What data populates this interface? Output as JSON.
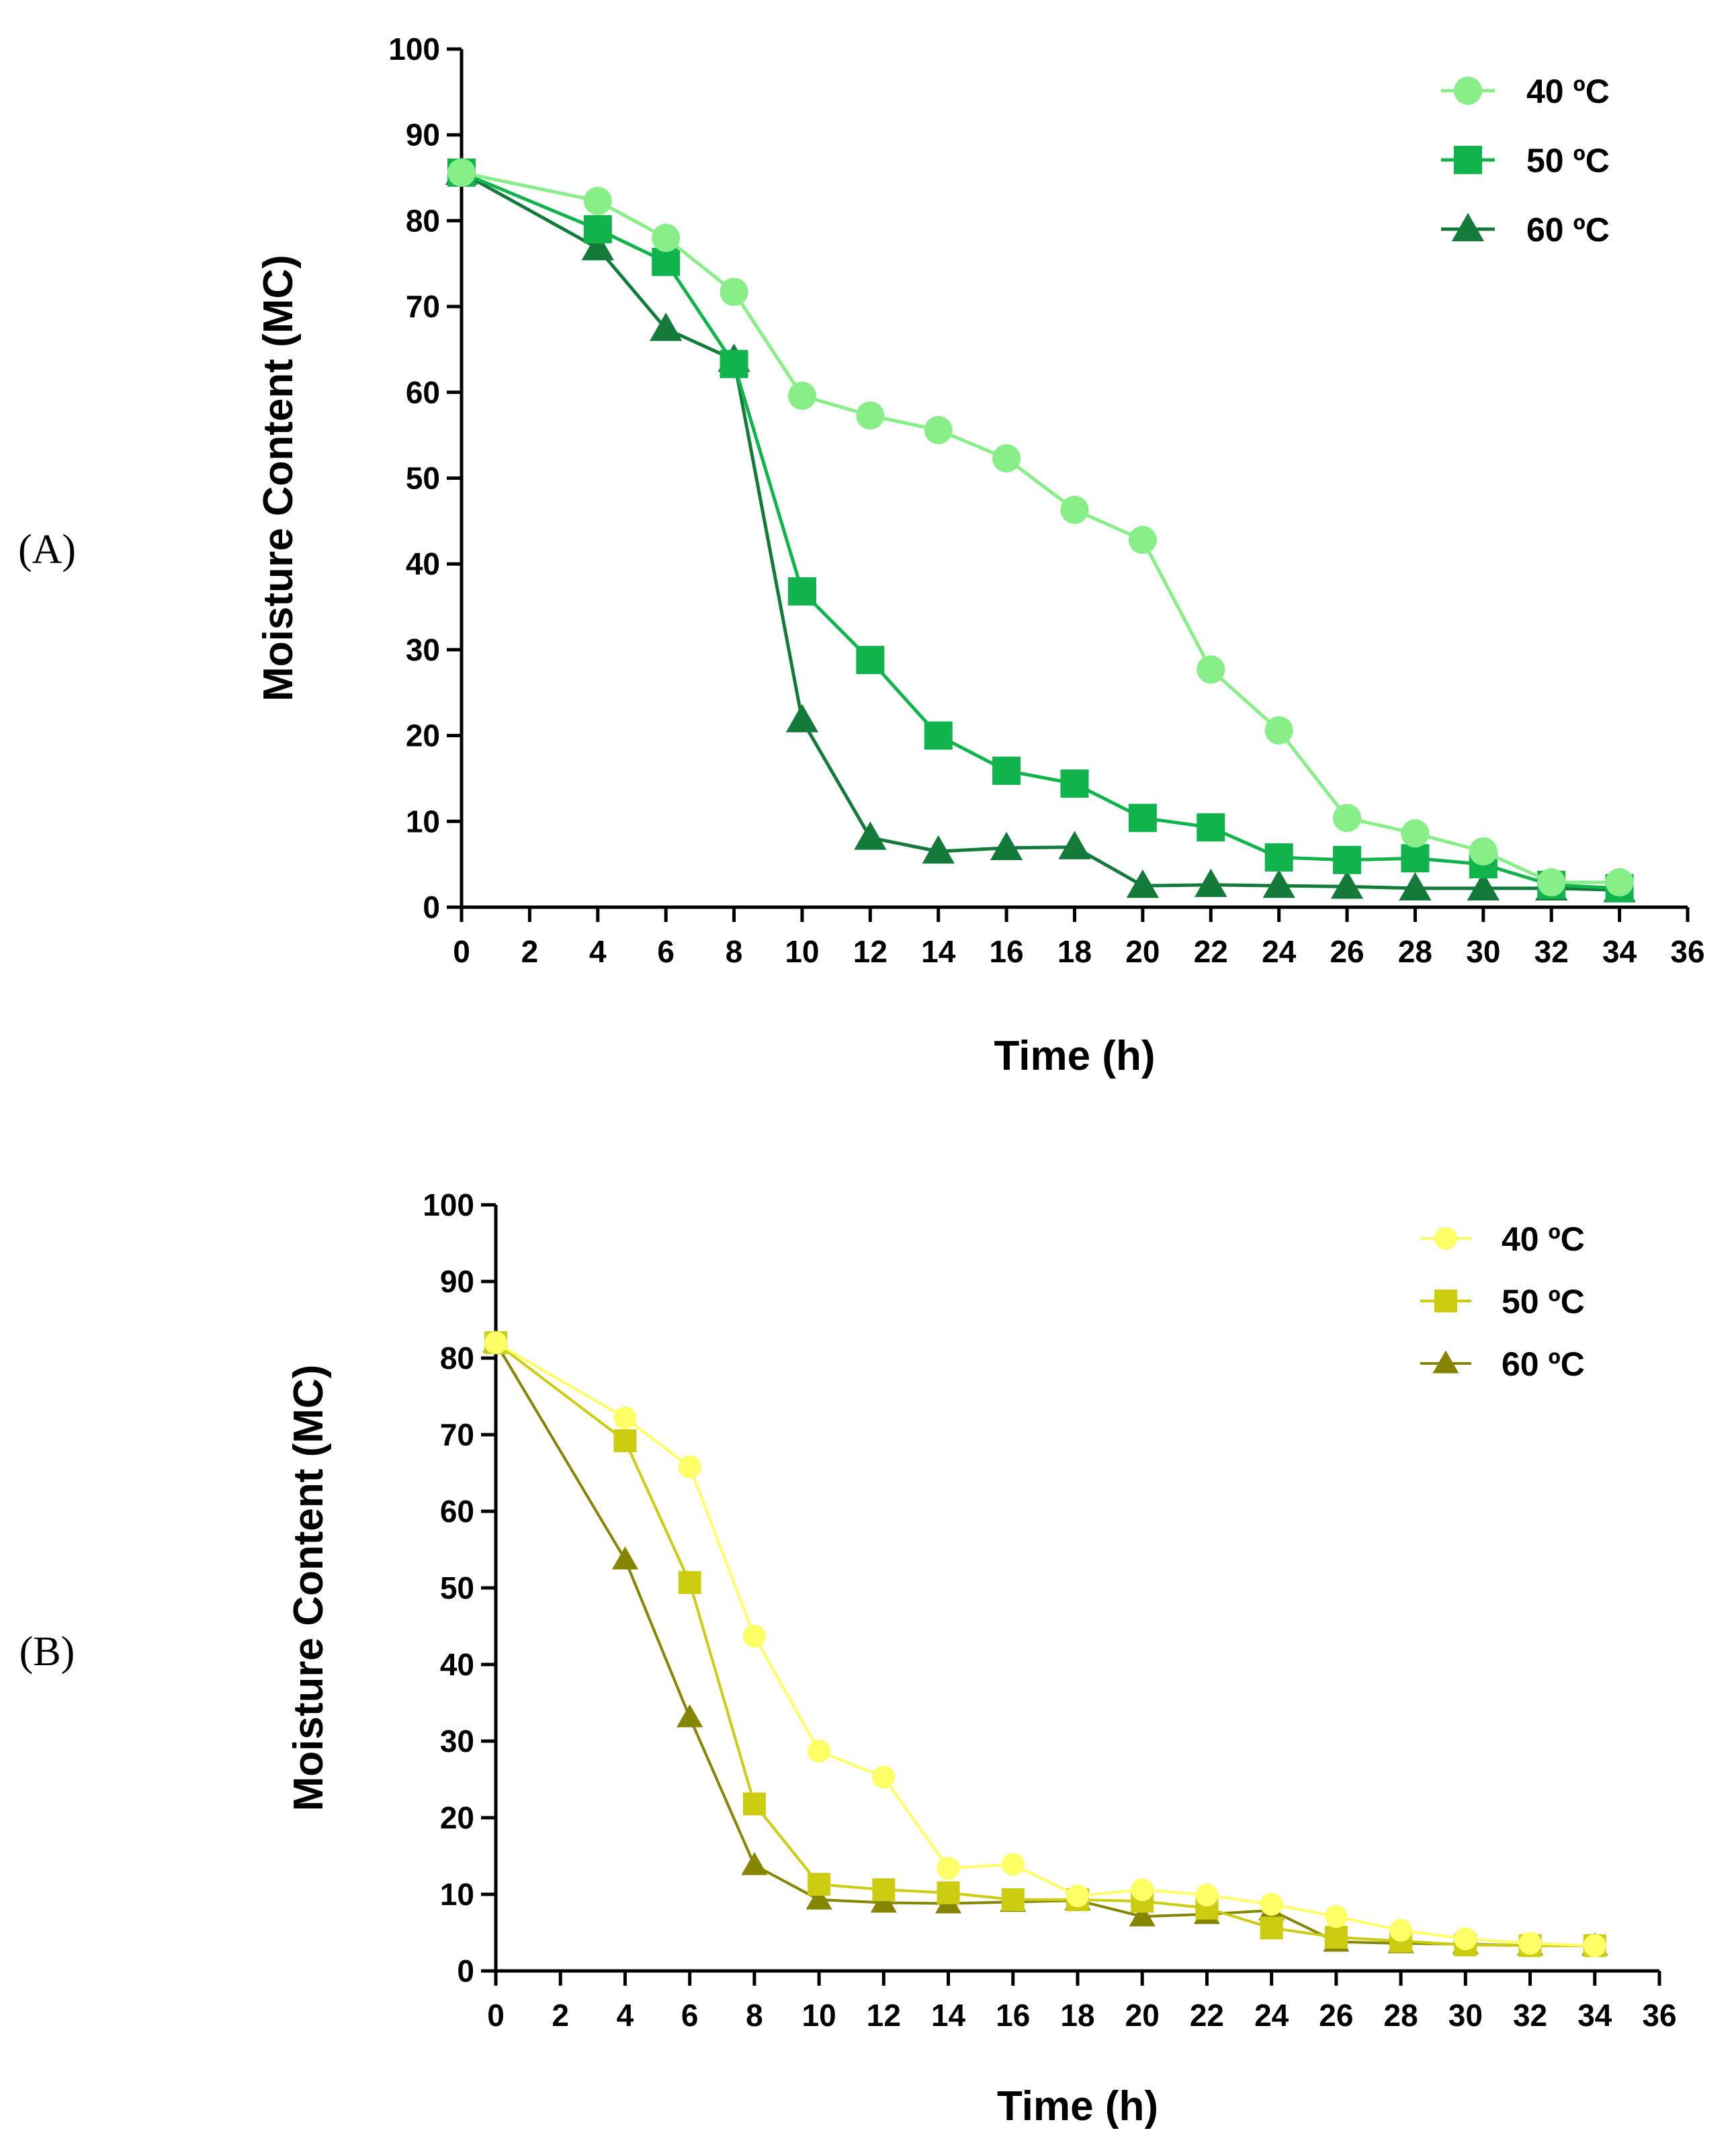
{
  "chart_data": [
    {
      "panel_label": "(A)",
      "type": "line",
      "xlabel": "Time (h)",
      "ylabel": "Moisture Content (MC)",
      "xlim": [
        0,
        36
      ],
      "ylim": [
        0,
        100
      ],
      "xticks": [
        0,
        2,
        4,
        6,
        8,
        10,
        12,
        14,
        16,
        18,
        20,
        22,
        24,
        26,
        28,
        30,
        32,
        34,
        36
      ],
      "yticks": [
        0,
        10,
        20,
        30,
        40,
        50,
        60,
        70,
        80,
        90,
        100
      ],
      "x": [
        0,
        4,
        6,
        8,
        10,
        12,
        14,
        16,
        18,
        20,
        22,
        24,
        26,
        28,
        30,
        32,
        34
      ],
      "legend_position": "top-right",
      "series": [
        {
          "name": "40 ºC",
          "marker": "circle",
          "color": "#88ee88",
          "values": [
            85.6,
            82.3,
            78.0,
            71.7,
            59.6,
            57.3,
            55.6,
            52.3,
            46.3,
            42.8,
            27.7,
            20.6,
            10.4,
            8.6,
            6.5,
            2.9,
            2.9
          ]
        },
        {
          "name": "50 ºC",
          "marker": "square",
          "color": "#11b34d",
          "values": [
            85.6,
            79.0,
            75.2,
            63.3,
            36.8,
            28.8,
            20.0,
            15.9,
            14.4,
            10.4,
            9.3,
            5.8,
            5.5,
            5.7,
            5.0,
            2.6,
            2.2
          ]
        },
        {
          "name": "60 ºC",
          "marker": "triangle",
          "color": "#137a3a",
          "values": [
            85.6,
            76.8,
            67.4,
            63.8,
            21.8,
            8.1,
            6.5,
            6.9,
            7.0,
            2.5,
            2.6,
            2.5,
            2.4,
            2.2,
            2.2,
            2.2,
            2.0
          ]
        }
      ]
    },
    {
      "panel_label": "(B)",
      "type": "line",
      "xlabel": "Time (h)",
      "ylabel": "Moisture Content (MC)",
      "xlim": [
        0,
        36
      ],
      "ylim": [
        0,
        100
      ],
      "xticks": [
        0,
        2,
        4,
        6,
        8,
        10,
        12,
        14,
        16,
        18,
        20,
        22,
        24,
        26,
        28,
        30,
        32,
        34,
        36
      ],
      "yticks": [
        0,
        10,
        20,
        30,
        40,
        50,
        60,
        70,
        80,
        90,
        100
      ],
      "x": [
        0,
        4,
        6,
        8,
        10,
        12,
        14,
        16,
        18,
        20,
        22,
        24,
        26,
        28,
        30,
        32,
        34
      ],
      "legend_position": "top-right",
      "series": [
        {
          "name": "40 ºC",
          "marker": "circle",
          "color": "#ffff66",
          "values": [
            82.0,
            72.2,
            65.8,
            43.7,
            28.7,
            25.3,
            13.4,
            13.9,
            9.8,
            10.6,
            9.9,
            8.7,
            7.1,
            5.3,
            4.2,
            3.6,
            3.3
          ]
        },
        {
          "name": "50 ºC",
          "marker": "square",
          "color": "#cccc11",
          "values": [
            82.0,
            69.2,
            50.7,
            21.8,
            11.3,
            10.6,
            10.2,
            9.3,
            9.3,
            9.1,
            8.2,
            5.6,
            4.4,
            3.9,
            3.4,
            3.3,
            3.3
          ]
        },
        {
          "name": "60 ºC",
          "marker": "triangle",
          "color": "#858500",
          "values": [
            82.0,
            53.7,
            33.1,
            13.8,
            9.3,
            8.9,
            8.8,
            9.0,
            9.2,
            7.1,
            7.4,
            7.9,
            3.8,
            3.6,
            3.5,
            3.3,
            3.3
          ]
        }
      ]
    }
  ]
}
